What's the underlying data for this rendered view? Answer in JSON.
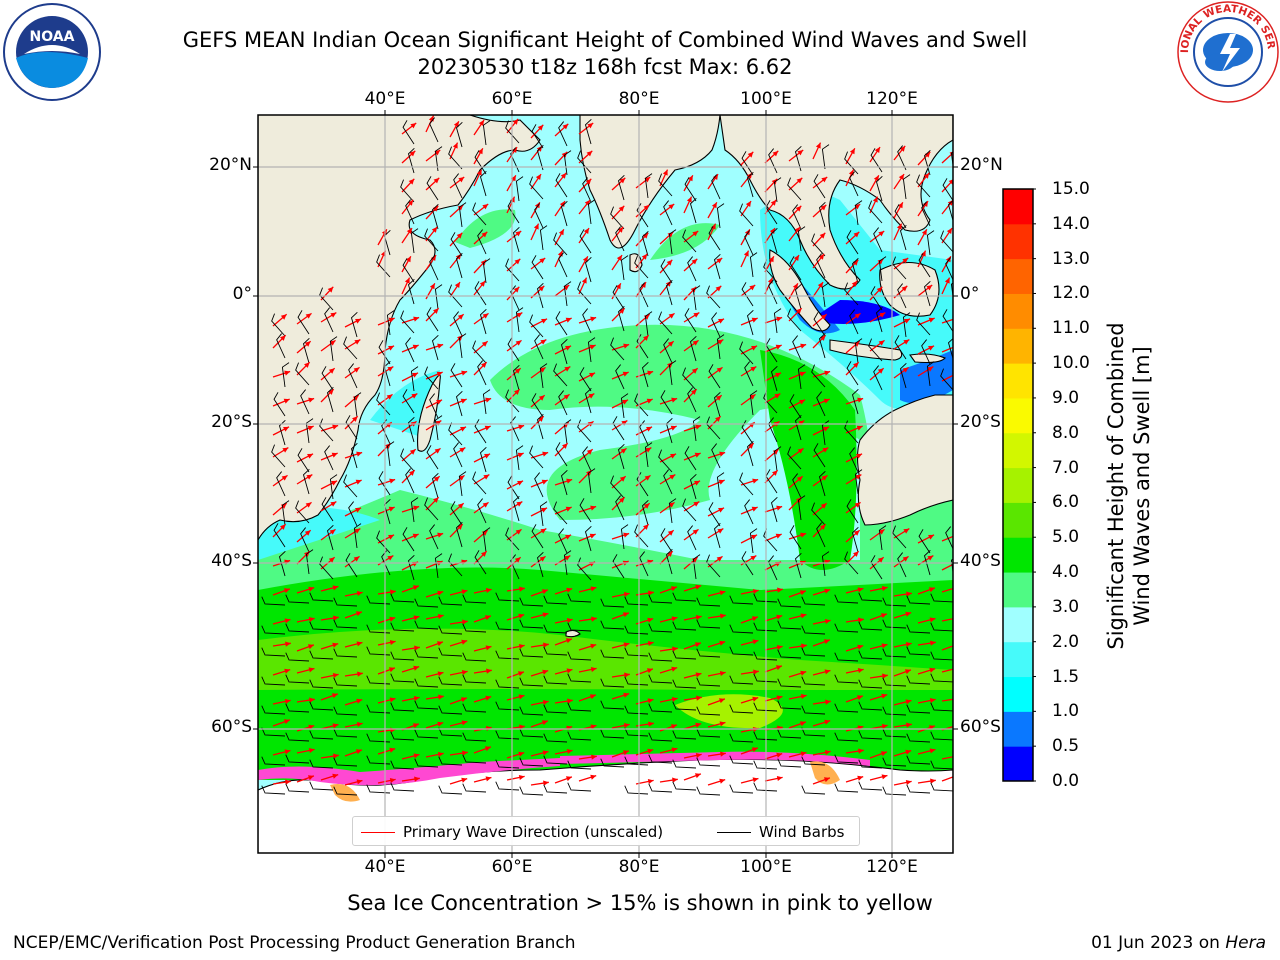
{
  "header": {
    "title_line1": "GEFS MEAN Indian Ocean Significant Height of Combined Wind Waves and Swell",
    "title_line2": "20230530 t18z 168h fcst   Max: 6.62"
  },
  "logos": {
    "left": "NOAA",
    "left_icon": "noaa-logo-icon",
    "right": "NATIONAL WEATHER SERVICE",
    "right_icon": "nws-logo-icon"
  },
  "map": {
    "lon_ticks_top": [
      "40°E",
      "60°E",
      "80°E",
      "100°E",
      "120°E"
    ],
    "lon_ticks_bottom": [
      "40°E",
      "60°E",
      "80°E",
      "100°E",
      "120°E"
    ],
    "lat_ticks_left": [
      "20°N",
      "0°",
      "20°S",
      "40°S",
      "60°S"
    ],
    "lat_ticks_right": [
      "20°N",
      "0°",
      "20°S",
      "40°S",
      "60°S"
    ],
    "legend": {
      "wave_label": "Primary Wave Direction (unscaled)",
      "barb_label": "Wind Barbs"
    },
    "colors": {
      "land": "#efecdc",
      "grid": "#b3b3b3",
      "arrows": "#ff0000",
      "barbs": "#000000"
    }
  },
  "colorbar": {
    "title_line1": "Significant Height of Combined",
    "title_line2": "Wind Waves and Swell [m]",
    "levels": [
      "0.0",
      "0.5",
      "1.0",
      "1.5",
      "2.0",
      "3.0",
      "4.0",
      "5.0",
      "6.0",
      "7.0",
      "8.0",
      "9.0",
      "10.0",
      "11.0",
      "12.0",
      "13.0",
      "14.0",
      "15.0"
    ],
    "colors": [
      "#0000ff",
      "#0a78ff",
      "#00ffff",
      "#46fafa",
      "#a0ffff",
      "#4ffa84",
      "#00e600",
      "#5ae600",
      "#a6f200",
      "#d2f700",
      "#fafa00",
      "#ffe400",
      "#ffb400",
      "#ff8c00",
      "#ff6400",
      "#ff3200",
      "#ff0000"
    ]
  },
  "footer": {
    "note": "Sea Ice Concentration > 15% is shown in pink to yellow",
    "credit": "NCEP/EMC/Verification Post Processing Product Generation Branch",
    "date": "01 Jun 2023 on ",
    "host": "Hera"
  }
}
